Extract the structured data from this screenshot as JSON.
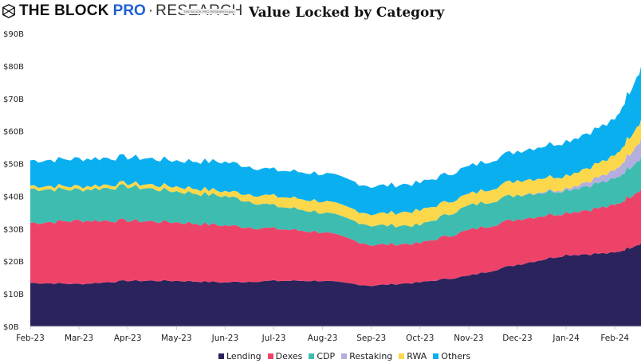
{
  "header": {
    "brand_the": "THE BLOCK",
    "brand_pro": "PRO",
    "brand_dot": "·",
    "brand_research": "RESEARCH",
    "watermark": "THE BLOCK PRO RESEARCH.png"
  },
  "chart_data": {
    "type": "area",
    "stacked": true,
    "title": "Value Locked by Category",
    "xlabel": "",
    "ylabel": "",
    "ylim": [
      0,
      90
    ],
    "yticks": [
      "$0B",
      "$10B",
      "$20B",
      "$30B",
      "$40B",
      "$50B",
      "$60B",
      "$70B",
      "$80B",
      "$90B"
    ],
    "ytick_values": [
      0,
      10,
      20,
      30,
      40,
      50,
      60,
      70,
      80,
      90
    ],
    "xticks": [
      "Feb-23",
      "Mar-23",
      "Apr-23",
      "May-23",
      "Jun-23",
      "Jul-23",
      "Aug-23",
      "Sep-23",
      "Oct-23",
      "Nov-23",
      "Dec-23",
      "Jan-24",
      "Feb-24"
    ],
    "x": [
      0,
      1,
      2,
      3,
      4,
      5,
      6,
      7,
      8,
      9,
      10,
      11,
      12,
      12.6
    ],
    "grid": false,
    "legend_position": "bottom-center",
    "series": [
      {
        "name": "Lending",
        "color": "#2a235c",
        "values": [
          13.4,
          13,
          14,
          14,
          13.5,
          14,
          14,
          12.5,
          13.5,
          15.5,
          19,
          22,
          22.5,
          26
        ]
      },
      {
        "name": "Dexes",
        "color": "#ee4369",
        "values": [
          18.4,
          19.5,
          18.5,
          18,
          17.5,
          16,
          15,
          12.5,
          12,
          14,
          14,
          13,
          14.5,
          17
        ]
      },
      {
        "name": "CDP",
        "color": "#3fbcb0",
        "values": [
          10.5,
          9.5,
          10.5,
          9.5,
          9,
          7,
          6,
          6,
          5.5,
          7.5,
          7.5,
          7,
          8,
          10
        ]
      },
      {
        "name": "Restaking",
        "color": "#b3aede",
        "values": [
          0,
          0,
          0,
          0,
          0,
          0,
          0,
          0,
          0,
          0,
          0,
          0.5,
          2.5,
          6
        ]
      },
      {
        "name": "RWA",
        "color": "#fbd84b",
        "values": [
          1,
          1,
          1,
          1.5,
          1.5,
          3,
          3.5,
          3.5,
          4.5,
          3.5,
          4.5,
          4,
          4.5,
          6
        ]
      },
      {
        "name": "Others",
        "color": "#0aafef",
        "values": [
          7.7,
          8.5,
          8,
          8,
          9,
          8,
          8.5,
          8.5,
          8.5,
          8.5,
          9,
          10.5,
          11,
          17
        ]
      }
    ]
  }
}
